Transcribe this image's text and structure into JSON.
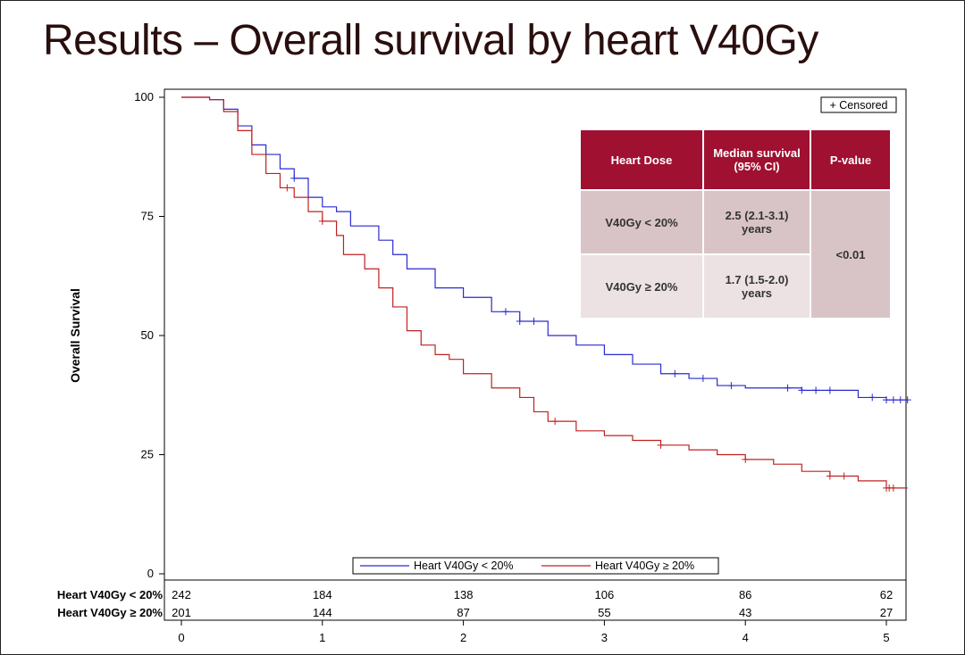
{
  "title": "Results – Overall survival by heart V40Gy",
  "chart_data": {
    "type": "line",
    "subtype": "kaplan-meier",
    "ylabel": "Overall Survival",
    "xlabel": "",
    "xlim": [
      0,
      5
    ],
    "ylim": [
      0,
      100
    ],
    "x_ticks": [
      "0",
      "1",
      "2",
      "3",
      "4",
      "5"
    ],
    "y_ticks": [
      "0",
      "25",
      "50",
      "75",
      "100"
    ],
    "censored_label": "+ Censored",
    "legend_position": "bottom-center",
    "series": [
      {
        "name": "Heart V40Gy < 20%",
        "color": "#2a2ad0",
        "points": [
          [
            0,
            100
          ],
          [
            0.2,
            99.5
          ],
          [
            0.3,
            97.5
          ],
          [
            0.4,
            94
          ],
          [
            0.5,
            90
          ],
          [
            0.6,
            88
          ],
          [
            0.7,
            85
          ],
          [
            0.8,
            83
          ],
          [
            0.9,
            79
          ],
          [
            1.0,
            77
          ],
          [
            1.1,
            76
          ],
          [
            1.2,
            73
          ],
          [
            1.4,
            70
          ],
          [
            1.5,
            67
          ],
          [
            1.6,
            64
          ],
          [
            1.8,
            60
          ],
          [
            2.0,
            58
          ],
          [
            2.2,
            55
          ],
          [
            2.4,
            53
          ],
          [
            2.6,
            50
          ],
          [
            2.8,
            48
          ],
          [
            3.0,
            46
          ],
          [
            3.2,
            44
          ],
          [
            3.4,
            42
          ],
          [
            3.6,
            41
          ],
          [
            3.8,
            39.5
          ],
          [
            4.0,
            39
          ],
          [
            4.4,
            38.5
          ],
          [
            4.8,
            37
          ],
          [
            5.0,
            36.5
          ],
          [
            5.15,
            36.5
          ]
        ],
        "censored_x": [
          0.8,
          2.3,
          2.4,
          2.5,
          3.5,
          3.7,
          3.9,
          4.3,
          4.4,
          4.5,
          4.6,
          4.9,
          5.0,
          5.05,
          5.1,
          5.15
        ]
      },
      {
        "name": "Heart V40Gy ≥ 20%",
        "color": "#c02020",
        "points": [
          [
            0,
            100
          ],
          [
            0.2,
            99.5
          ],
          [
            0.3,
            97
          ],
          [
            0.4,
            93
          ],
          [
            0.5,
            88
          ],
          [
            0.6,
            84
          ],
          [
            0.7,
            81
          ],
          [
            0.8,
            79
          ],
          [
            0.9,
            76
          ],
          [
            1.0,
            74
          ],
          [
            1.1,
            71
          ],
          [
            1.15,
            67
          ],
          [
            1.3,
            64
          ],
          [
            1.4,
            60
          ],
          [
            1.5,
            56
          ],
          [
            1.6,
            51
          ],
          [
            1.7,
            48
          ],
          [
            1.8,
            46
          ],
          [
            1.9,
            45
          ],
          [
            2.0,
            42
          ],
          [
            2.2,
            39
          ],
          [
            2.4,
            37
          ],
          [
            2.5,
            34
          ],
          [
            2.6,
            32
          ],
          [
            2.8,
            30
          ],
          [
            3.0,
            29
          ],
          [
            3.2,
            28
          ],
          [
            3.4,
            27
          ],
          [
            3.6,
            26
          ],
          [
            3.8,
            25
          ],
          [
            4.0,
            24
          ],
          [
            4.2,
            23
          ],
          [
            4.4,
            21.5
          ],
          [
            4.6,
            20.5
          ],
          [
            4.8,
            19.5
          ],
          [
            5.0,
            18
          ],
          [
            5.15,
            18
          ]
        ],
        "censored_x": [
          0.75,
          1.0,
          2.65,
          3.4,
          4.0,
          4.6,
          4.7,
          5.0,
          5.02,
          5.05
        ]
      }
    ],
    "number_at_risk": {
      "times": [
        0,
        1,
        2,
        3,
        4,
        5
      ],
      "rows": [
        {
          "label": "Heart V40Gy < 20%",
          "values": [
            "242",
            "184",
            "138",
            "106",
            "86",
            "62"
          ]
        },
        {
          "label": "Heart V40Gy ≥ 20%",
          "values": [
            "201",
            "144",
            "87",
            "55",
            "43",
            "27"
          ]
        }
      ]
    }
  },
  "table": {
    "headers": [
      "Heart Dose",
      "Median survival (95% CI)",
      "P-value"
    ],
    "rows": [
      {
        "dose": "V40Gy < 20%",
        "median": "2.5 (2.1-3.1) years"
      },
      {
        "dose": "V40Gy ≥ 20%",
        "median": "1.7 (1.5-2.0) years"
      }
    ],
    "p_value": "<0.01",
    "header_color": "#a01030"
  }
}
